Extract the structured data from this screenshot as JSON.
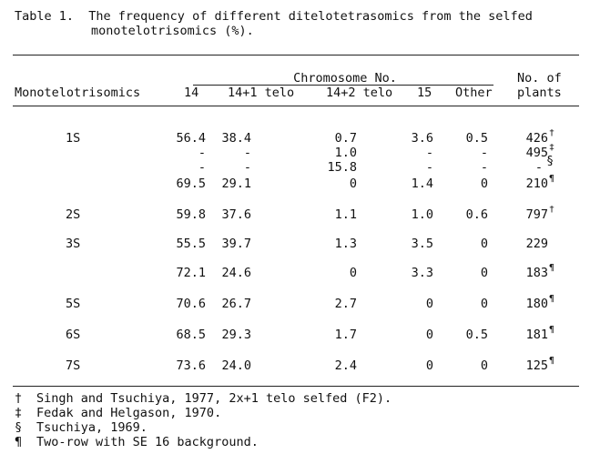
{
  "caption": {
    "line1": "Table 1.  The frequency of different ditelotetrasomics from the selfed",
    "line2": "monotelotrisomics (%)."
  },
  "headers": {
    "row_label": "Monotelotrisomics",
    "group": "Chromosome No.",
    "cols": [
      "14",
      "14+1 telo",
      "14+2 telo",
      "15",
      "Other"
    ],
    "plants_line1": "No. of",
    "plants_line2": "plants"
  },
  "rows": [
    {
      "label": "1S",
      "vals": [
        "56.4",
        "38.4",
        "0.7",
        "3.6",
        "0.5"
      ],
      "plants": "426",
      "mark": "†"
    },
    {
      "label": "",
      "vals": [
        "-",
        "-",
        "1.0",
        "-",
        "-"
      ],
      "plants": "495",
      "mark": "‡"
    },
    {
      "label": "",
      "vals": [
        "-",
        "-",
        "15.8",
        "-",
        "-"
      ],
      "plants": "-",
      "mark": "§"
    },
    {
      "label": "",
      "vals": [
        "69.5",
        "29.1",
        "0",
        "1.4",
        "0"
      ],
      "plants": "210",
      "mark": "¶"
    },
    {
      "label": "2S",
      "vals": [
        "59.8",
        "37.6",
        "1.1",
        "1.0",
        "0.6"
      ],
      "plants": "797",
      "mark": "†"
    },
    {
      "label": "3S",
      "vals": [
        "55.5",
        "39.7",
        "1.3",
        "3.5",
        "0"
      ],
      "plants": "229",
      "mark": ""
    },
    {
      "label": "",
      "vals": [
        "72.1",
        "24.6",
        "0",
        "3.3",
        "0"
      ],
      "plants": "183",
      "mark": "¶"
    },
    {
      "label": "5S",
      "vals": [
        "70.6",
        "26.7",
        "2.7",
        "0",
        "0"
      ],
      "plants": "180",
      "mark": "¶"
    },
    {
      "label": "6S",
      "vals": [
        "68.5",
        "29.3",
        "1.7",
        "0",
        "0.5"
      ],
      "plants": "181",
      "mark": "¶"
    },
    {
      "label": "7S",
      "vals": [
        "73.6",
        "24.0",
        "2.4",
        "0",
        "0"
      ],
      "plants": "125",
      "mark": "¶"
    }
  ],
  "footnotes": [
    {
      "mark": "†",
      "text": "Singh and Tsuchiya, 1977, 2x+1 telo selfed (F2)."
    },
    {
      "mark": "‡",
      "text": "Fedak and Helgason, 1970."
    },
    {
      "mark": "§",
      "text": "Tsuchiya, 1969."
    },
    {
      "mark": "¶",
      "text": "Two-row with SE 16 background."
    }
  ]
}
